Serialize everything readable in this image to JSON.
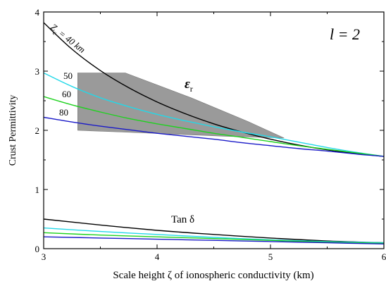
{
  "chart_data": {
    "type": "line",
    "title": "",
    "xlabel": "Scale height ζ of ionospheric conductivity (km)",
    "ylabel": "Crust Permittivity",
    "xlim": [
      3,
      6
    ],
    "ylim": [
      0,
      4
    ],
    "xticks": [
      "3",
      "4",
      "5",
      "6"
    ],
    "yticks": [
      "0",
      "1",
      "2",
      "3",
      "4"
    ],
    "grid": false,
    "legend": "none",
    "annotations": {
      "degree": "l = 2",
      "epsilon": "ε",
      "epsilon_sub": "r",
      "tan_delta": "Tan δ",
      "zc_prefix": "Z",
      "zc_sub": "c",
      "zc_suffix": " = 40 km",
      "label_50": "50",
      "label_60": "60",
      "label_80": "80"
    },
    "shaded_region": {
      "color": "#9a9a9a",
      "polygon": [
        [
          3.3,
          2.97
        ],
        [
          3.72,
          2.97
        ],
        [
          4.3,
          2.55
        ],
        [
          4.8,
          2.15
        ],
        [
          5.12,
          1.87
        ],
        [
          4.6,
          1.9
        ],
        [
          3.7,
          1.97
        ],
        [
          3.3,
          2.0
        ]
      ]
    },
    "series": [
      {
        "color": "#000000",
        "x": [
          3.0,
          3.25,
          3.5,
          3.75,
          4.0,
          4.25,
          4.5,
          4.75,
          5.0,
          5.25,
          5.5,
          5.75,
          6.0
        ],
        "values": [
          3.82,
          3.37,
          3.01,
          2.72,
          2.48,
          2.28,
          2.11,
          1.97,
          1.85,
          1.75,
          1.67,
          1.61,
          1.56
        ]
      },
      {
        "color": "#22d8e8",
        "x": [
          3.0,
          3.25,
          3.5,
          3.75,
          4.0,
          4.25,
          4.5,
          4.75,
          5.0,
          5.25,
          5.5,
          5.75,
          6.0
        ],
        "values": [
          2.97,
          2.74,
          2.55,
          2.4,
          2.27,
          2.16,
          2.06,
          1.97,
          1.89,
          1.8,
          1.71,
          1.63,
          1.56
        ]
      },
      {
        "color": "#1fd21f",
        "x": [
          3.0,
          3.25,
          3.5,
          3.75,
          4.0,
          4.25,
          4.5,
          4.75,
          5.0,
          5.25,
          5.5,
          5.75,
          6.0
        ],
        "values": [
          2.57,
          2.43,
          2.31,
          2.2,
          2.11,
          2.03,
          1.95,
          1.88,
          1.81,
          1.74,
          1.68,
          1.62,
          1.56
        ]
      },
      {
        "color": "#1a1ac8",
        "x": [
          3.0,
          3.25,
          3.5,
          3.75,
          4.0,
          4.25,
          4.5,
          4.75,
          5.0,
          5.25,
          5.5,
          5.75,
          6.0
        ],
        "values": [
          2.22,
          2.14,
          2.07,
          2.01,
          1.95,
          1.9,
          1.85,
          1.79,
          1.74,
          1.69,
          1.65,
          1.6,
          1.56
        ]
      },
      {
        "color": "#000000",
        "x": [
          3.0,
          3.5,
          4.0,
          4.5,
          5.0,
          5.5,
          6.0
        ],
        "values": [
          0.5,
          0.4,
          0.31,
          0.24,
          0.18,
          0.13,
          0.1
        ]
      },
      {
        "color": "#22d8e8",
        "x": [
          3.0,
          3.5,
          4.0,
          4.5,
          5.0,
          5.5,
          6.0
        ],
        "values": [
          0.35,
          0.29,
          0.24,
          0.19,
          0.15,
          0.12,
          0.1
        ]
      },
      {
        "color": "#1fd21f",
        "x": [
          3.0,
          3.5,
          4.0,
          4.5,
          5.0,
          5.5,
          6.0
        ],
        "values": [
          0.27,
          0.23,
          0.2,
          0.17,
          0.14,
          0.11,
          0.09
        ]
      },
      {
        "color": "#1a1ac8",
        "x": [
          3.0,
          3.5,
          4.0,
          4.5,
          5.0,
          5.5,
          6.0
        ],
        "values": [
          0.2,
          0.18,
          0.16,
          0.14,
          0.12,
          0.1,
          0.08
        ]
      }
    ]
  }
}
